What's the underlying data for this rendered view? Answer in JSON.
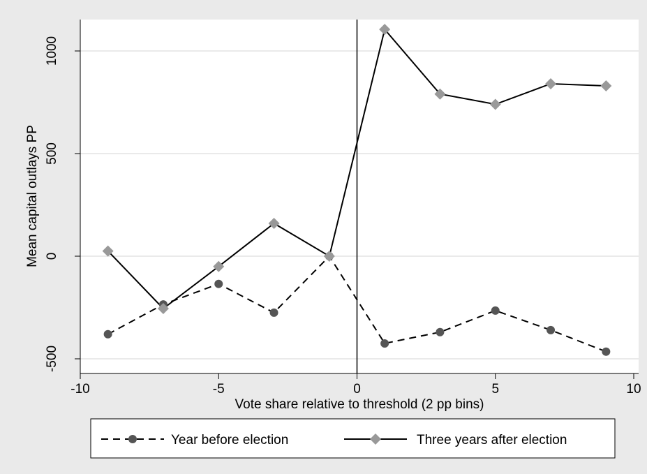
{
  "chart_data": {
    "type": "line",
    "xlabel": "Vote share relative to threshold (2 pp bins)",
    "ylabel": "Mean capital outlays PP",
    "xlim": [
      -10,
      10
    ],
    "ylim": [
      -500,
      1000
    ],
    "x_ticks": [
      "-10",
      "-5",
      "0",
      "5",
      "10"
    ],
    "x_tick_values": [
      -10,
      -5,
      0,
      5,
      10
    ],
    "y_ticks": [
      "-500",
      "0",
      "500",
      "1000"
    ],
    "y_tick_values": [
      -500,
      0,
      500,
      1000
    ],
    "grid": "horizontal",
    "reference_line_x": 0,
    "legend_position": "bottom",
    "series": [
      {
        "name": "Year before election",
        "marker": "circle",
        "line_style": "dashed",
        "color": "#555555",
        "x": [
          -9,
          -7,
          -5,
          -3,
          -1,
          1,
          3,
          5,
          7,
          9
        ],
        "values": [
          -380,
          -235,
          -135,
          -275,
          0,
          -425,
          -370,
          -265,
          -360,
          -465
        ]
      },
      {
        "name": "Three years after election",
        "marker": "diamond",
        "line_style": "solid",
        "color": "#999999",
        "x": [
          -9,
          -7,
          -5,
          -3,
          -1,
          1,
          3,
          5,
          7,
          9
        ],
        "values": [
          25,
          -255,
          -50,
          160,
          0,
          1105,
          790,
          740,
          840,
          830
        ]
      }
    ]
  }
}
